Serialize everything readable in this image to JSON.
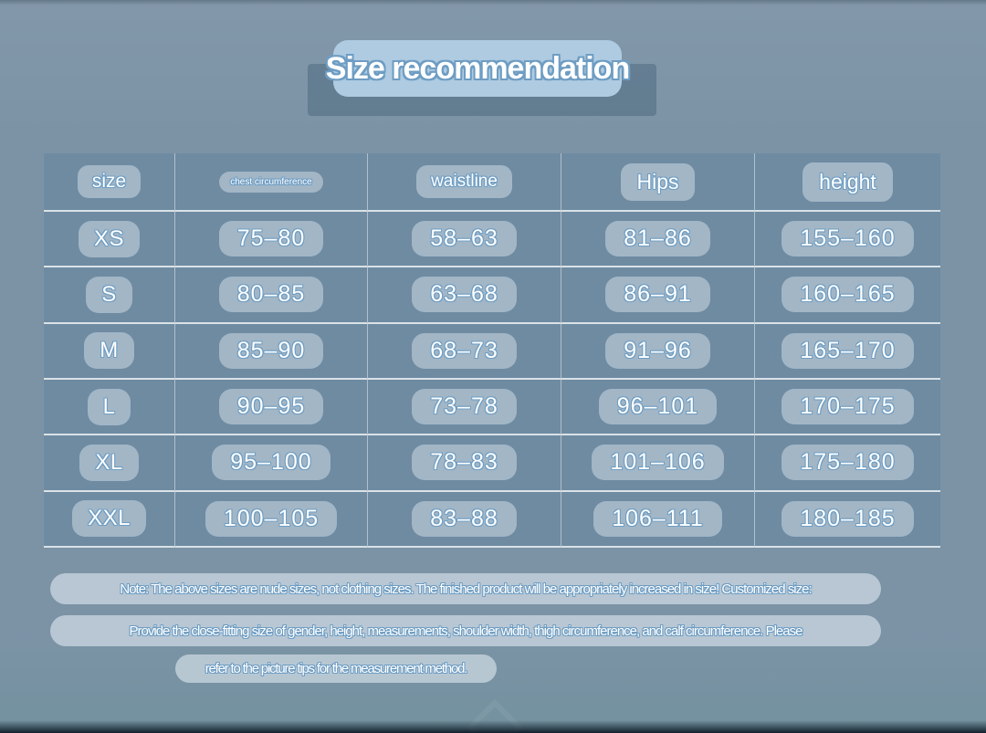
{
  "title": "Size recommendation",
  "chart_data": {
    "type": "table",
    "title": "Size recommendation",
    "columns": [
      "size",
      "chest circumference",
      "waistline",
      "Hips",
      "height"
    ],
    "rows": [
      [
        "XS",
        "75–80",
        "58–63",
        "81–86",
        "155–160"
      ],
      [
        "S",
        "80–85",
        "63–68",
        "86–91",
        "160–165"
      ],
      [
        "M",
        "85–90",
        "68–73",
        "91–96",
        "165–170"
      ],
      [
        "L",
        "90–95",
        "73–78",
        "96–101",
        "170–175"
      ],
      [
        "XL",
        "95–100",
        "78–83",
        "101–106",
        "175–180"
      ],
      [
        "XXL",
        "100–105",
        "83–88",
        "106–111",
        "180–185"
      ]
    ]
  },
  "notes": [
    "Note: The above sizes are nude sizes, not clothing sizes. The finished product will be appropriately increased in size! Customized size:",
    "Provide the close-fitting size of gender, height, measurements, shoulder width, thigh circumference, and calf circumference. Please",
    "refer to the picture tips for the measurement method."
  ],
  "colors": {
    "page-bg": "#7C93A6",
    "table-bg": "#6E8BA2",
    "pill-bg": "rgba(240,248,253,0.40)",
    "note-pill-bg": "rgba(240,248,253,0.52)",
    "title-pill-bg": "#AFCBE1",
    "title-shadow-bg": "rgba(59,89,112,0.40)",
    "text": "#FFFFFF",
    "outline": "#6E9DC3",
    "grid-h": "rgba(255,255,255,0.75)",
    "grid-v": "rgba(255,255,255,0.45)"
  }
}
